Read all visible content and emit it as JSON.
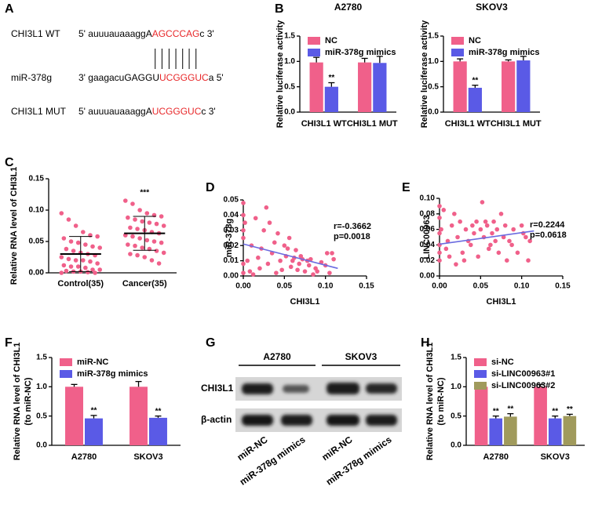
{
  "panel_labels": [
    "A",
    "B",
    "C",
    "D",
    "E",
    "F",
    "G",
    "H"
  ],
  "sequence_panel": {
    "rows": [
      {
        "label": "CHI3L1 WT",
        "segments": [
          {
            "text": "5' auuuauaaaggA",
            "color": "#000000"
          },
          {
            "text": "AGCCCAG",
            "color": "#e8282a"
          },
          {
            "text": "c 3'",
            "color": "#000000"
          }
        ]
      },
      {
        "label": "miR-378g",
        "segments": [
          {
            "text": "3' gaagacuGAGGU",
            "color": "#000000"
          },
          {
            "text": "UCGGGUC",
            "color": "#e8282a"
          },
          {
            "text": "a 5'",
            "color": "#000000"
          }
        ]
      },
      {
        "label": "CHI3L1 MUT",
        "segments": [
          {
            "text": "5' auuuauaaaggA",
            "color": "#000000"
          },
          {
            "text": "UCGGGUC",
            "color": "#e8282a"
          },
          {
            "text": "c 3'",
            "color": "#000000"
          }
        ]
      }
    ]
  },
  "blot_panel": {
    "cell_lines": [
      "A2780",
      "SKOV3"
    ],
    "proteins": [
      "CHI3L1",
      "β-actin"
    ],
    "lanes": [
      "miR-NC",
      "miR-378g mimics",
      "miR-NC",
      "miR-378g mimics"
    ]
  },
  "chart_data": [
    {
      "type": "bar",
      "title": "A2780",
      "ylabel": "Relative luciferase activity",
      "categories": [
        "CHI3L1 WT",
        "CHI3L1 MUT"
      ],
      "series": [
        {
          "name": "NC",
          "color": "#f0608a",
          "values": [
            0.98,
            0.98
          ],
          "errors": [
            0.1,
            0.08
          ],
          "significance": [
            null,
            null
          ]
        },
        {
          "name": "miR-378g mimics",
          "color": "#5a5ae6",
          "values": [
            0.5,
            0.97
          ],
          "errors": [
            0.08,
            0.13
          ],
          "significance": [
            "**",
            null
          ]
        }
      ],
      "ylim": [
        0,
        1.5
      ],
      "yticks": [
        {
          "value": 0,
          "label": "0.0"
        },
        0.5,
        {
          "value": 1,
          "label": "1.0"
        },
        1.5
      ],
      "legend": "upper left"
    },
    {
      "type": "bar",
      "title": "SKOV3",
      "ylabel": "Relative luciferase activity",
      "categories": [
        "CHI3L1 WT",
        "CHI3L1 MUT"
      ],
      "series": [
        {
          "name": "NC",
          "color": "#f0608a",
          "values": [
            1.0,
            1.0
          ],
          "errors": [
            0.05,
            0.03
          ],
          "significance": [
            null,
            null
          ]
        },
        {
          "name": "miR-378g mimics",
          "color": "#5a5ae6",
          "values": [
            0.48,
            1.02
          ],
          "errors": [
            0.05,
            0.08
          ],
          "significance": [
            "**",
            null
          ]
        }
      ],
      "ylim": [
        0,
        1.5
      ],
      "yticks": [
        {
          "value": 0,
          "label": "0.0"
        },
        0.5,
        {
          "value": 1,
          "label": "1.0"
        },
        1.5
      ],
      "legend": "upper left"
    },
    {
      "type": "dot",
      "ylabel": "Relative RNA level of CHI3L1",
      "categories": [
        "Control(35)",
        "Cancer(35)"
      ],
      "color": "#f0608a",
      "groups": [
        {
          "values": [
            0.095,
            0.085,
            0.075,
            0.065,
            0.06,
            0.058,
            0.055,
            0.05,
            0.048,
            0.045,
            0.042,
            0.04,
            0.038,
            0.035,
            0.032,
            0.03,
            0.028,
            0.025,
            0.022,
            0.02,
            0.02,
            0.018,
            0.015,
            0.012,
            0.01,
            0.01,
            0.008,
            0.005,
            0.005,
            0.003,
            0.002,
            0.002,
            0.001,
            0,
            0
          ],
          "mean": 0.03,
          "sd": 0.028
        },
        {
          "values": [
            0.115,
            0.11,
            0.1,
            0.095,
            0.092,
            0.09,
            0.088,
            0.085,
            0.082,
            0.08,
            0.078,
            0.075,
            0.072,
            0.07,
            0.068,
            0.065,
            0.063,
            0.06,
            0.058,
            0.055,
            0.052,
            0.05,
            0.048,
            0.045,
            0.043,
            0.04,
            0.038,
            0.035,
            0.032,
            0.03,
            0.028,
            0.025,
            0.02,
            0.015,
            0.06
          ],
          "mean": 0.063,
          "sd": 0.027
        }
      ],
      "significance": [
        null,
        "***"
      ],
      "ylim": [
        0,
        0.15
      ],
      "yticks": [
        {
          "value": 0,
          "label": "0.00"
        },
        0.05,
        {
          "value": 0.1,
          "label": "0.10"
        },
        0.15
      ]
    },
    {
      "type": "scatter",
      "xlabel": "CHI3L1",
      "ylabel": "miR-378g",
      "color": "#f0608a",
      "fit_color": "#6b6be0",
      "x": [
        0,
        0,
        0,
        0,
        0,
        0,
        0.002,
        0.005,
        0.008,
        0.01,
        0.012,
        0.015,
        0.018,
        0.02,
        0.022,
        0.025,
        0.028,
        0.03,
        0.032,
        0.035,
        0.038,
        0.04,
        0.042,
        0.045,
        0.047,
        0.05,
        0.052,
        0.054,
        0.056,
        0.058,
        0.06,
        0.062,
        0.064,
        0.066,
        0.068,
        0.07,
        0.072,
        0.075,
        0.078,
        0.08,
        0.082,
        0.085,
        0.088,
        0.09,
        0.095,
        0.1,
        0.102,
        0.105,
        0.108,
        0.11
      ],
      "y": [
        0.048,
        0.04,
        0.03,
        0.025,
        0.008,
        0.002,
        0.035,
        0.01,
        0.003,
        0.02,
        0.001,
        0.038,
        0.012,
        0.005,
        0.018,
        0.03,
        0.045,
        0.008,
        0.035,
        0.015,
        0.022,
        0.002,
        0.028,
        0.01,
        0.004,
        0.02,
        0.013,
        0.018,
        0.025,
        0.006,
        0.01,
        0.012,
        0.017,
        0.004,
        0.008,
        0.013,
        0.011,
        0.003,
        0.01,
        0.007,
        0.011,
        0.001,
        0.005,
        0.003,
        0.009,
        0.007,
        0.015,
        0.002,
        0.015,
        0.011
      ],
      "fit": {
        "x": [
          0,
          0.115
        ],
        "y": [
          0.021,
          0.005
        ]
      },
      "annotations": [
        "r=-0.3662",
        "p=0.0018"
      ],
      "xlim": [
        0,
        0.15
      ],
      "xticks": [
        {
          "value": 0,
          "label": "0.00"
        },
        0.05,
        {
          "value": 0.1,
          "label": "0.10"
        },
        0.15
      ],
      "ylim": [
        0,
        0.05
      ],
      "yticks": [
        {
          "value": 0,
          "label": "0.00"
        },
        0.01,
        0.02,
        0.03,
        0.04,
        0.05
      ]
    },
    {
      "type": "scatter",
      "xlabel": "CHI3L1",
      "ylabel": "LINC00963",
      "color": "#f0608a",
      "fit_color": "#6b6be0",
      "x": [
        0,
        0,
        0,
        0,
        0,
        0,
        0.002,
        0.005,
        0.008,
        0.01,
        0.012,
        0.015,
        0.018,
        0.02,
        0.022,
        0.025,
        0.028,
        0.03,
        0.032,
        0.035,
        0.038,
        0.04,
        0.042,
        0.045,
        0.047,
        0.05,
        0.052,
        0.054,
        0.056,
        0.058,
        0.06,
        0.062,
        0.064,
        0.066,
        0.068,
        0.07,
        0.072,
        0.075,
        0.078,
        0.08,
        0.082,
        0.085,
        0.088,
        0.09,
        0.095,
        0.1,
        0.102,
        0.105,
        0.108,
        0.11
      ],
      "y": [
        0.09,
        0.075,
        0.055,
        0.04,
        0.03,
        0.02,
        0.06,
        0.085,
        0.035,
        0.045,
        0.025,
        0.065,
        0.08,
        0.015,
        0.05,
        0.07,
        0.03,
        0.02,
        0.06,
        0.045,
        0.04,
        0.065,
        0.055,
        0.07,
        0.025,
        0.06,
        0.095,
        0.05,
        0.07,
        0.065,
        0.035,
        0.04,
        0.055,
        0.07,
        0.045,
        0.06,
        0.03,
        0.08,
        0.05,
        0.065,
        0.02,
        0.045,
        0.04,
        0.06,
        0.03,
        0.065,
        0.055,
        0.05,
        0.02,
        0.045
      ],
      "fit": {
        "x": [
          0,
          0.115
        ],
        "y": [
          0.041,
          0.058
        ]
      },
      "annotations": [
        "r=0.2244",
        "p=0.0618"
      ],
      "xlim": [
        0,
        0.15
      ],
      "xticks": [
        {
          "value": 0,
          "label": "0.00"
        },
        0.05,
        {
          "value": 0.1,
          "label": "0.10"
        },
        0.15
      ],
      "ylim": [
        0,
        0.1
      ],
      "yticks": [
        {
          "value": 0,
          "label": "0.00"
        },
        0.02,
        0.04,
        0.06,
        0.08,
        {
          "value": 0.1,
          "label": "0.10"
        }
      ]
    },
    {
      "type": "bar",
      "ylabel": [
        "Relative RNA level of CHI3L1",
        "(to miR-NC)"
      ],
      "categories": [
        "A2780",
        "SKOV3"
      ],
      "series": [
        {
          "name": "miR-NC",
          "color": "#f0608a",
          "values": [
            1.0,
            1.0
          ],
          "errors": [
            0.04,
            0.09
          ],
          "significance": [
            null,
            null
          ]
        },
        {
          "name": "miR-378g mimics",
          "color": "#5a5ae6",
          "values": [
            0.46,
            0.47
          ],
          "errors": [
            0.05,
            0.03
          ],
          "significance": [
            "**",
            "**"
          ]
        }
      ],
      "ylim": [
        0,
        1.5
      ],
      "yticks": [
        {
          "value": 0,
          "label": "0.0"
        },
        0.5,
        {
          "value": 1,
          "label": "1.0"
        },
        1.5
      ],
      "legend": "upper left"
    },
    {
      "type": "bar",
      "ylabel": [
        "Relative RNA level of CHI3L1",
        "(to miR-NC)"
      ],
      "categories": [
        "A2780",
        "SKOV3"
      ],
      "series": [
        {
          "name": "si-NC",
          "color": "#f0608a",
          "values": [
            1.0,
            1.0
          ],
          "errors": [
            0.04,
            0.04
          ],
          "significance": [
            null,
            null
          ]
        },
        {
          "name": "si-LINC00963#1",
          "color": "#5a5ae6",
          "values": [
            0.46,
            0.46
          ],
          "errors": [
            0.04,
            0.04
          ],
          "significance": [
            "**",
            "**"
          ]
        },
        {
          "name": "si-LINC00963#2",
          "color": "#a09a5c",
          "values": [
            0.49,
            0.5
          ],
          "errors": [
            0.05,
            0.03
          ],
          "significance": [
            "**",
            "**"
          ]
        }
      ],
      "ylim": [
        0,
        1.5
      ],
      "yticks": [
        {
          "value": 0,
          "label": "0.0"
        },
        0.5,
        {
          "value": 1,
          "label": "1.0"
        },
        1.5
      ],
      "legend": "upper left"
    }
  ]
}
